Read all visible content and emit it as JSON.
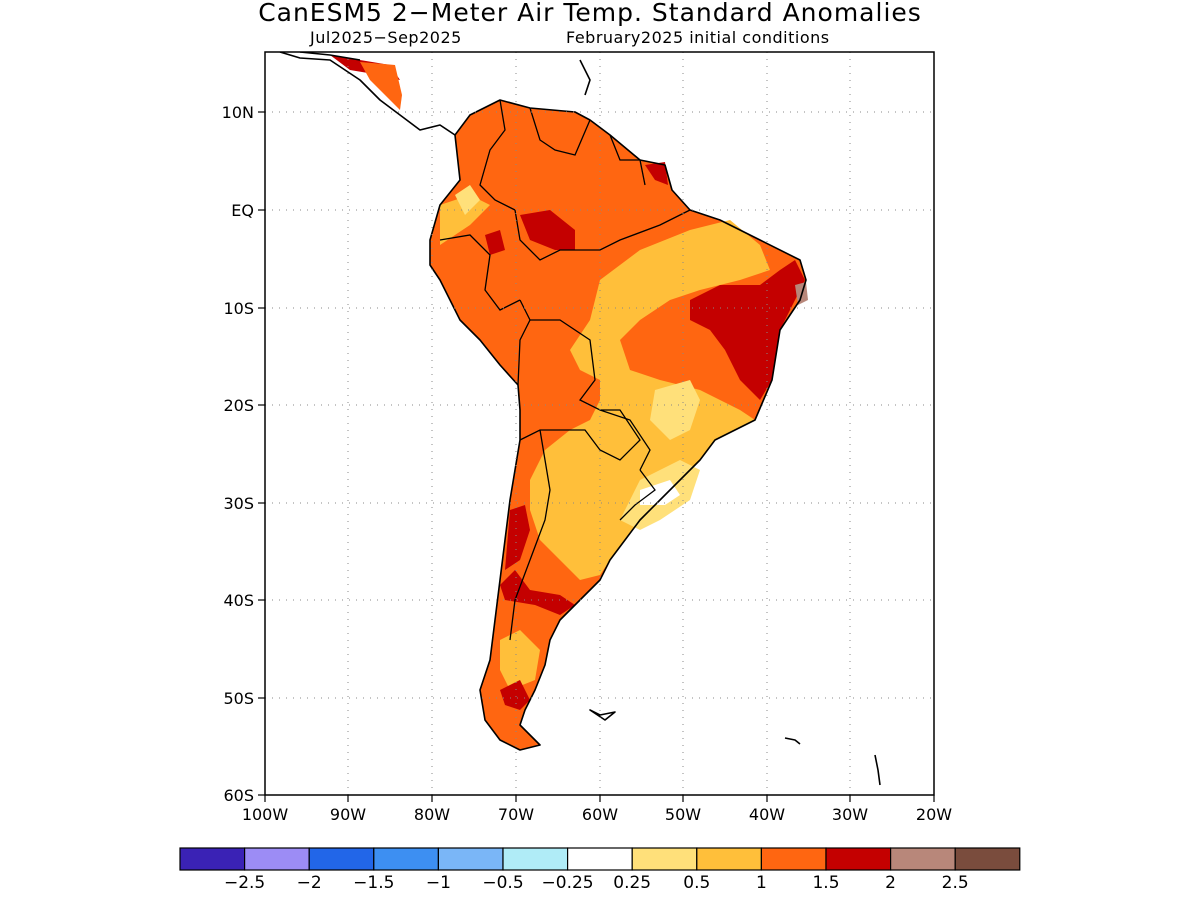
{
  "title": "CanESM5 2−Meter Air Temp. Standard Anomalies",
  "subtitle_period": "Jul2025−Sep2025",
  "subtitle_init": "February2025 initial conditions",
  "map": {
    "lon_range": [
      -100,
      -20
    ],
    "lat_range": [
      -60,
      5
    ],
    "lat_ticks": [
      {
        "value": 10,
        "label": "10N"
      },
      {
        "value": 0,
        "label": "EQ"
      },
      {
        "value": -10,
        "label": "10S"
      },
      {
        "value": -20,
        "label": "20S"
      },
      {
        "value": -30,
        "label": "30S"
      },
      {
        "value": -40,
        "label": "40S"
      },
      {
        "value": -50,
        "label": "50S"
      },
      {
        "value": -60,
        "label": "60S"
      }
    ],
    "lon_ticks": [
      {
        "value": -100,
        "label": "100W"
      },
      {
        "value": -90,
        "label": "90W"
      },
      {
        "value": -80,
        "label": "80W"
      },
      {
        "value": -70,
        "label": "70W"
      },
      {
        "value": -60,
        "label": "60W"
      },
      {
        "value": -50,
        "label": "50W"
      },
      {
        "value": -40,
        "label": "40W"
      },
      {
        "value": -30,
        "label": "30W"
      },
      {
        "value": -20,
        "label": "20W"
      }
    ],
    "grid": "dotted"
  },
  "colorbar": {
    "colors": [
      "#3a22b5",
      "#9c8cf5",
      "#2266e8",
      "#3d8ff2",
      "#7ab6f7",
      "#b0ecf7",
      "#ffffff",
      "#ffe07a",
      "#ffbf3a",
      "#ff6611",
      "#c40000",
      "#b8877a",
      "#7a4c3d"
    ],
    "labels": [
      "−2.5",
      "−2",
      "−1.5",
      "−1",
      "−0.5",
      "−0.25",
      "0.25",
      "0.5",
      "1",
      "1.5",
      "2",
      "2.5"
    ]
  }
}
